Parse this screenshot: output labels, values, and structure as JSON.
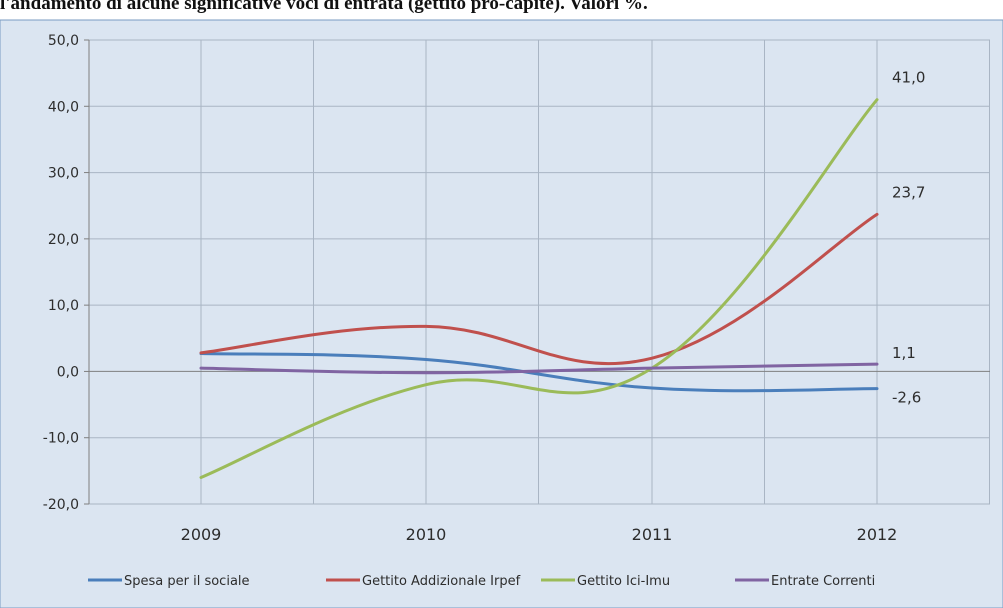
{
  "chart_data": {
    "type": "line",
    "title": "l'andamento di alcune significative voci di entrata (gettito pro-capite). Valori %.",
    "xlabel": "",
    "ylabel": "",
    "categories": [
      "2009",
      "2010",
      "2011",
      "2012"
    ],
    "ylim": [
      -20,
      50
    ],
    "yticks": [
      50,
      40,
      30,
      20,
      10,
      0,
      -10,
      -20
    ],
    "ytick_labels": [
      "50,0",
      "40,0",
      "30,0",
      "20,0",
      "10,0",
      "0,0",
      "-10,0",
      "-20,0"
    ],
    "grid": true,
    "smooth": true,
    "legend_position": "bottom",
    "series": [
      {
        "name": "Spesa per il sociale",
        "color": "#4a7ebb",
        "values": [
          2.7,
          1.8,
          -2.5,
          -2.6
        ]
      },
      {
        "name": "Gettito Addizionale Irpef",
        "color": "#c0504d",
        "values": [
          2.8,
          6.8,
          2.0,
          23.7
        ]
      },
      {
        "name": "Gettito Ici-Imu",
        "color": "#9bbb59",
        "values": [
          -16.0,
          -2.0,
          0.5,
          41.0
        ]
      },
      {
        "name": "Entrate Correnti",
        "color": "#8064a2",
        "values": [
          0.5,
          -0.2,
          0.5,
          1.1
        ]
      }
    ],
    "data_labels": [
      {
        "series": "Gettito Ici-Imu",
        "category": "2012",
        "value": 41.0,
        "text": "41,0"
      },
      {
        "series": "Gettito Addizionale Irpef",
        "category": "2012",
        "value": 23.7,
        "text": "23,7"
      },
      {
        "series": "Entrate Correnti",
        "category": "2012",
        "value": 1.1,
        "text": "1,1"
      },
      {
        "series": "Spesa per il sociale",
        "category": "2012",
        "value": -2.6,
        "text": "-2,6"
      }
    ]
  },
  "colors": {
    "background": "#dbe5f1",
    "grid": "#a9b5c4",
    "axis": "#7f7f7f",
    "border": "#7a9bc2"
  }
}
